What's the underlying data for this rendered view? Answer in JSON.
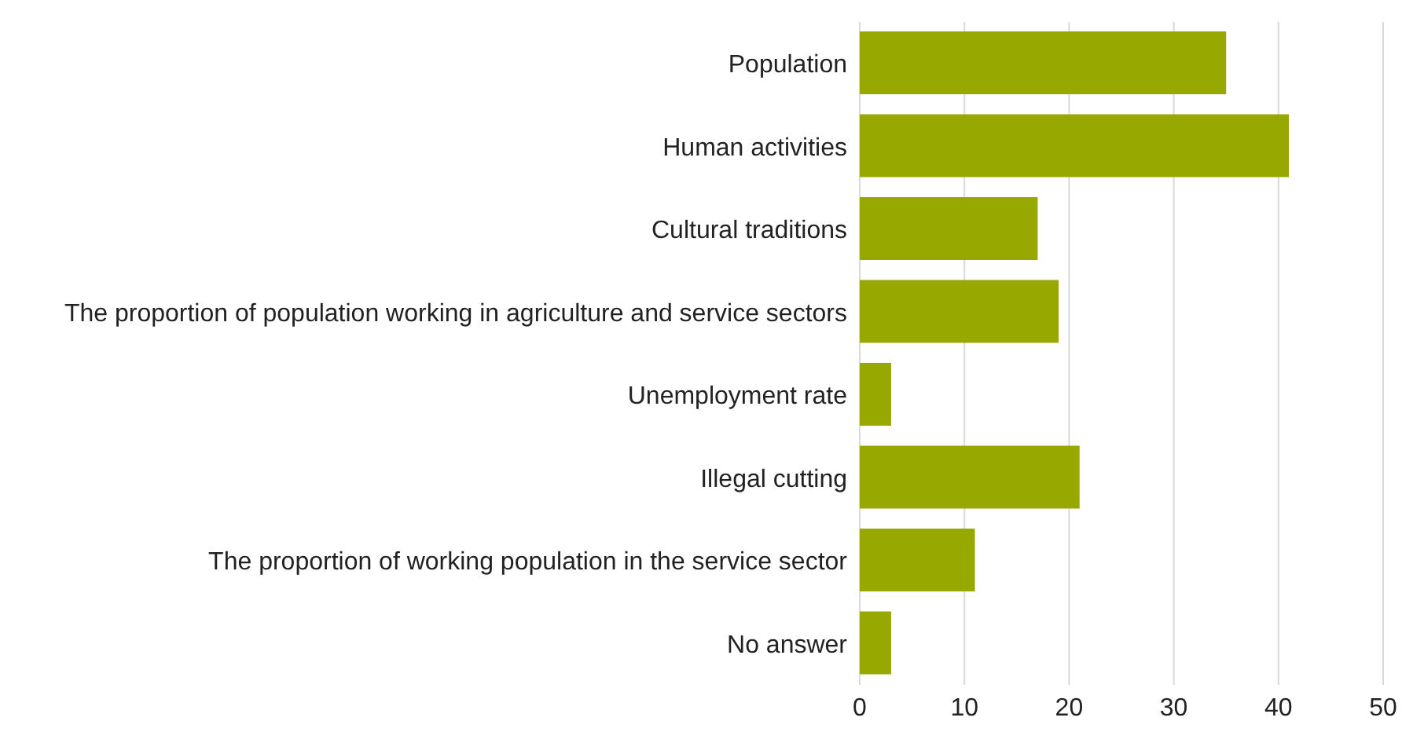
{
  "chart_data": {
    "type": "bar",
    "orientation": "horizontal",
    "categories": [
      "Population",
      "Human activities",
      "Cultural traditions",
      "The proportion of population working in agriculture and service sectors",
      "Unemployment rate",
      "Illegal cutting",
      "The proportion of working population in the service sector",
      "No answer"
    ],
    "values": [
      35,
      41,
      17,
      19,
      3,
      21,
      11,
      3
    ],
    "color": "#97a800",
    "xlim": [
      0,
      50
    ],
    "xticks": [
      0,
      10,
      20,
      30,
      40,
      50
    ],
    "grid": "x",
    "legend": false
  }
}
